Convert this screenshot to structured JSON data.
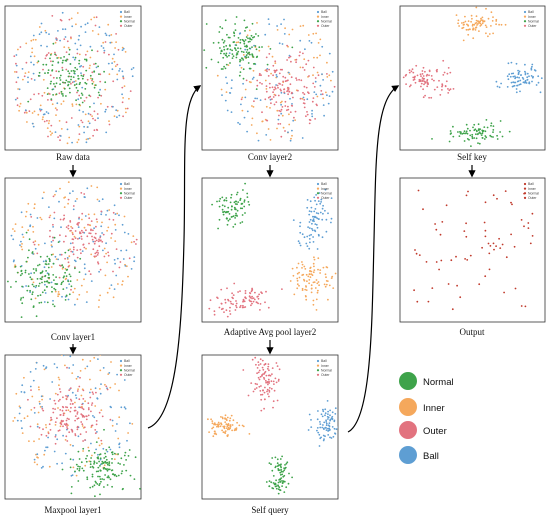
{
  "colors": {
    "Normal": "#3ea34a",
    "Inner": "#f5a85c",
    "Outer": "#e2737f",
    "Ball": "#5e9ed3"
  },
  "panel_legend": [
    "Ball",
    "Inner",
    "Normal",
    "Outer"
  ],
  "panels": [
    {
      "id": "raw-data",
      "label": "Raw data",
      "pattern": "raw"
    },
    {
      "id": "conv-layer1",
      "label": "Conv layer1",
      "pattern": "conv1"
    },
    {
      "id": "maxpool-layer1",
      "label": "Maxpool layer1",
      "pattern": "maxpool1"
    },
    {
      "id": "conv-layer2",
      "label": "Conv layer2",
      "pattern": "conv2"
    },
    {
      "id": "adaptive-avg-pool-layer2",
      "label": "Adaptive Avg pool layer2",
      "pattern": "avgpool2"
    },
    {
      "id": "self-query",
      "label": "Self query",
      "pattern": "query"
    },
    {
      "id": "self-key",
      "label": "Self key",
      "pattern": "key"
    },
    {
      "id": "output",
      "label": "Output",
      "pattern": "output"
    }
  ],
  "main_legend": [
    {
      "label": "Normal",
      "class": "Normal"
    },
    {
      "label": "Inner",
      "class": "Inner"
    },
    {
      "label": "Outer",
      "class": "Outer"
    },
    {
      "label": "Ball",
      "class": "Ball"
    }
  ]
}
